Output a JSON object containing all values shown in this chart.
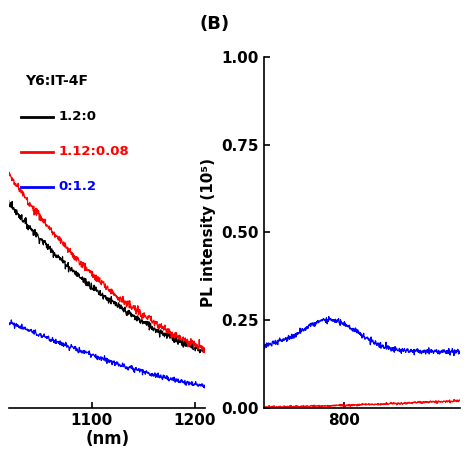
{
  "panel_A": {
    "xlim": [
      1020,
      1210
    ],
    "xlabel": "(nm)",
    "xticks": [
      1100,
      1200
    ],
    "legend_title": "Y6:IT-4F",
    "legend_entries": [
      {
        "label": "1.2:0",
        "color": "#000000"
      },
      {
        "label": "1.12:0.08",
        "color": "#ff0000"
      },
      {
        "label": "0:1.2",
        "color": "#0000ff"
      }
    ]
  },
  "panel_B": {
    "xlim": [
      745,
      880
    ],
    "ylim": [
      0.0,
      1.0
    ],
    "yticks": [
      0.0,
      0.25,
      0.5,
      0.75,
      1.0
    ],
    "ylabel": "PL intensity (10⁵)",
    "xtick": 800,
    "panel_label": "(B)"
  },
  "background_color": "#ffffff",
  "fig_width": 4.74,
  "fig_height": 4.74,
  "dpi": 100
}
